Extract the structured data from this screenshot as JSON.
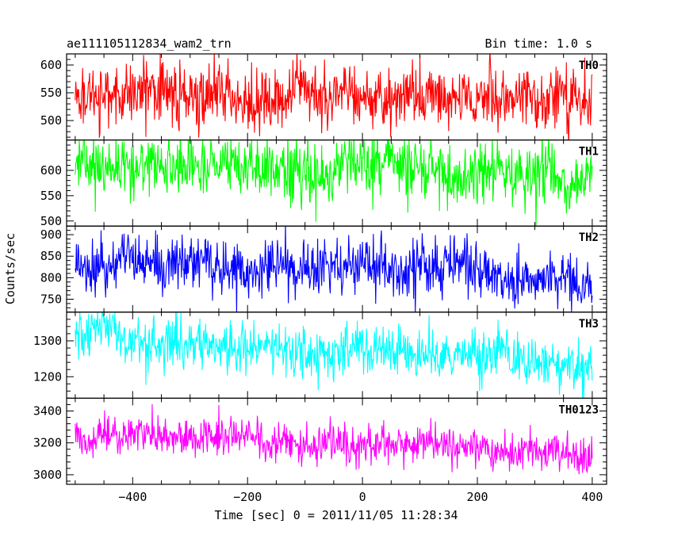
{
  "chart_data": {
    "type": "line",
    "title_left": "ae111105112834_wam2_trn",
    "title_right": "Bin time: 1.0 s",
    "xlabel": "Time [sec] 0 = 2011/11/05 11:28:34",
    "ylabel": "Counts/sec",
    "xlim": [
      -515,
      425
    ],
    "xticks": [
      -400,
      -200,
      0,
      200,
      400
    ],
    "xtick_labels": [
      "−400",
      "−200",
      "0",
      "200",
      "400"
    ],
    "x_start": -500,
    "x_end": 400,
    "bin_time": 1.0,
    "panels": [
      {
        "label": "TH0",
        "color": "#ff0000",
        "ylim": [
          465,
          620
        ],
        "yticks": [
          500,
          550,
          600
        ],
        "trend_start": 548,
        "trend_end": 540,
        "noise_sd": 28
      },
      {
        "label": "TH1",
        "color": "#00ff00",
        "ylim": [
          490,
          660
        ],
        "yticks": [
          500,
          550,
          600
        ],
        "trend_start": 614,
        "trend_end": 580,
        "noise_sd": 30
      },
      {
        "label": "TH2",
        "color": "#0000ff",
        "ylim": [
          720,
          920
        ],
        "yticks": [
          750,
          800,
          850,
          900
        ],
        "trend_start": 838,
        "trend_end": 797,
        "noise_sd": 33
      },
      {
        "label": "TH3",
        "color": "#00ffff",
        "ylim": [
          1140,
          1380
        ],
        "yticks": [
          1200,
          1300
        ],
        "trend_start": 1310,
        "trend_end": 1225,
        "noise_sd": 36
      },
      {
        "label": "TH0123",
        "color": "#ff00ff",
        "ylim": [
          2940,
          3480
        ],
        "yticks": [
          3000,
          3200,
          3400
        ],
        "trend_start": 3260,
        "trend_end": 3115,
        "noise_sd": 62
      }
    ]
  }
}
